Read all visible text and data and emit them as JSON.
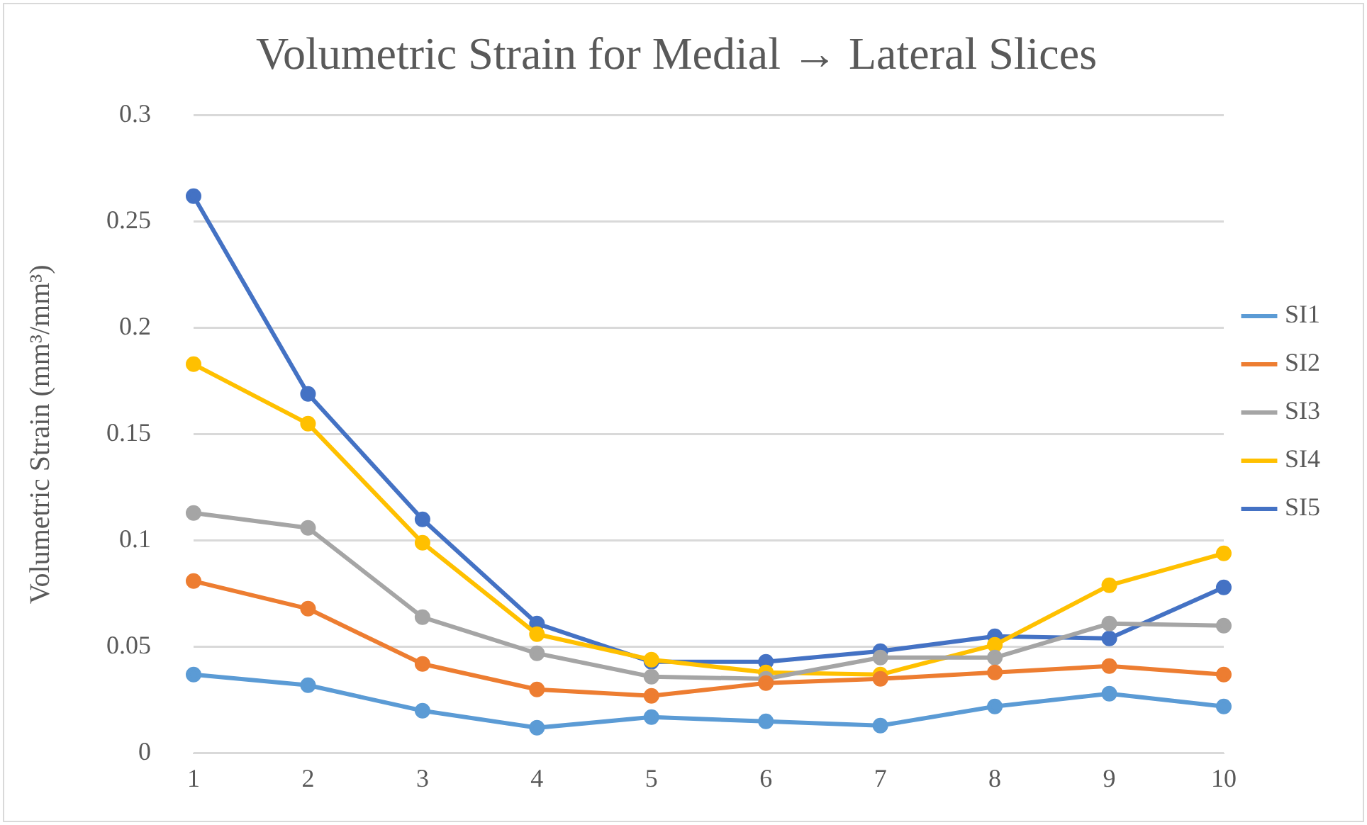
{
  "chart_data": {
    "type": "line",
    "title": "Volumetric Strain for Medial → Lateral Slices",
    "ylabel": "Volumetric Strain (mm³/mm³)",
    "categories": [
      "1",
      "2",
      "3",
      "4",
      "5",
      "6",
      "7",
      "8",
      "9",
      "10"
    ],
    "series": [
      {
        "name": "SI1",
        "color": "#5b9bd5",
        "values": [
          0.037,
          0.032,
          0.02,
          0.012,
          0.017,
          0.015,
          0.013,
          0.022,
          0.028,
          0.022
        ]
      },
      {
        "name": "SI2",
        "color": "#ed7d31",
        "values": [
          0.081,
          0.068,
          0.042,
          0.03,
          0.027,
          0.033,
          0.035,
          0.038,
          0.041,
          0.037
        ]
      },
      {
        "name": "SI3",
        "color": "#a5a5a5",
        "values": [
          0.113,
          0.106,
          0.064,
          0.047,
          0.036,
          0.035,
          0.045,
          0.045,
          0.061,
          0.06
        ]
      },
      {
        "name": "SI4",
        "color": "#ffc000",
        "values": [
          0.183,
          0.155,
          0.099,
          0.056,
          0.044,
          0.038,
          0.037,
          0.051,
          0.079,
          0.094
        ]
      },
      {
        "name": "SI5",
        "color": "#4472c4",
        "values": [
          0.262,
          0.169,
          0.11,
          0.061,
          0.043,
          0.043,
          0.048,
          0.055,
          0.054,
          0.078
        ]
      }
    ],
    "ylim": [
      0,
      0.3
    ],
    "yticks": [
      0,
      0.05,
      0.1,
      0.15,
      0.2,
      0.25,
      0.3
    ],
    "grid": "y",
    "legend": "right",
    "marker": "circle",
    "line_style": "solid"
  }
}
